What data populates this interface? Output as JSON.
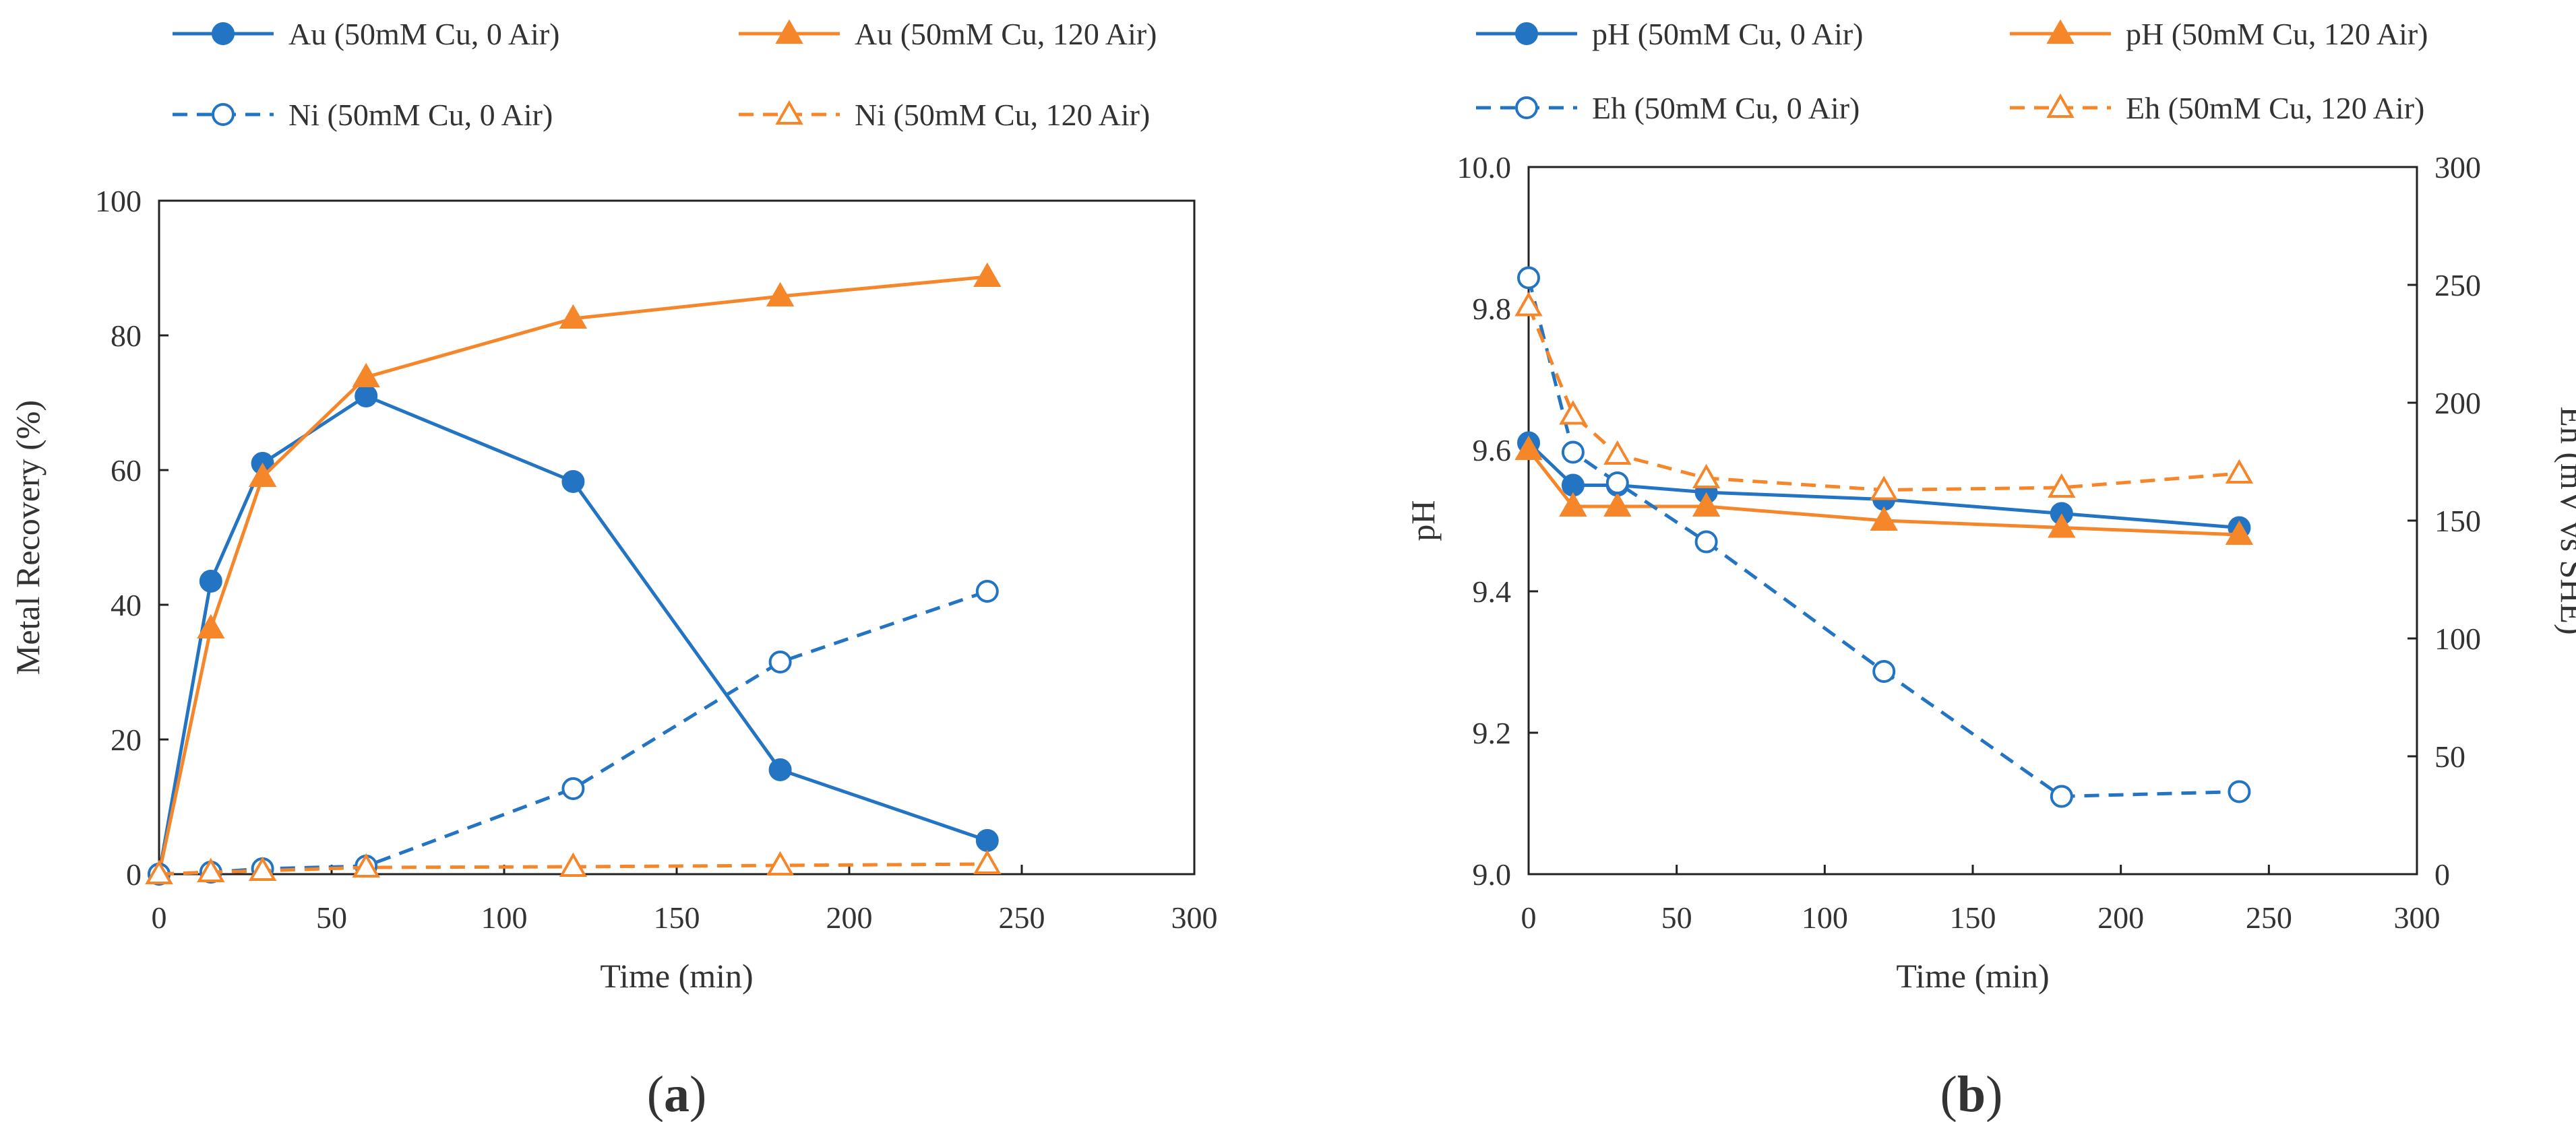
{
  "chart_data": [
    {
      "type": "line",
      "panel": "(a)",
      "panel_letter": "a",
      "xlabel": "Time (min)",
      "ylabel": "Metal Recovery (%)",
      "xlim": [
        0,
        300
      ],
      "ylim": [
        0,
        100
      ],
      "xticks": [
        0,
        50,
        100,
        150,
        200,
        250,
        300
      ],
      "yticks": [
        0,
        20,
        40,
        60,
        80,
        100
      ],
      "legend_position": "top",
      "series": [
        {
          "name": "Au (50mM Cu, 0 Air)",
          "color": "#2474c4",
          "marker": "circle",
          "filled": true,
          "dashed": false,
          "x": [
            0,
            15,
            30,
            60,
            120,
            180,
            240
          ],
          "y": [
            0,
            43.5,
            61,
            71,
            58.3,
            15.5,
            5
          ]
        },
        {
          "name": "Au (50mM Cu, 120 Air)",
          "color": "#f5862a",
          "marker": "triangle",
          "filled": true,
          "dashed": false,
          "x": [
            0,
            15,
            30,
            60,
            120,
            180,
            240
          ],
          "y": [
            0,
            36.5,
            59,
            73.8,
            82.5,
            85.8,
            88.7
          ]
        },
        {
          "name": "Ni (50mM Cu, 0 Air)",
          "color": "#2474c4",
          "marker": "circle",
          "filled": false,
          "dashed": true,
          "x": [
            0,
            15,
            30,
            60,
            120,
            180,
            240
          ],
          "y": [
            0,
            0.3,
            0.8,
            1.2,
            12.7,
            31.5,
            42
          ]
        },
        {
          "name": "Ni (50mM Cu, 120 Air)",
          "color": "#f5862a",
          "marker": "triangle",
          "filled": false,
          "dashed": true,
          "x": [
            0,
            15,
            30,
            60,
            120,
            180,
            240
          ],
          "y": [
            0,
            0.3,
            0.5,
            1,
            1.1,
            1.3,
            1.5
          ]
        }
      ]
    },
    {
      "type": "line",
      "panel": "(b)",
      "panel_letter": "b",
      "xlabel": "Time (min)",
      "ylabel": "pH",
      "y2label": "Eh (mV vs SHE)",
      "xlim": [
        0,
        300
      ],
      "ylim": [
        9.0,
        10.0
      ],
      "y2lim": [
        0,
        300
      ],
      "xticks": [
        0,
        50,
        100,
        150,
        200,
        250,
        300
      ],
      "yticks": [
        "9.0",
        "9.2",
        "9.4",
        "9.6",
        "9.8",
        "10.0"
      ],
      "y2ticks": [
        0,
        50,
        100,
        150,
        200,
        250,
        300
      ],
      "legend_position": "top",
      "series": [
        {
          "name": "pH (50mM Cu, 0 Air)",
          "axis": "left",
          "color": "#2474c4",
          "marker": "circle",
          "filled": true,
          "dashed": false,
          "x": [
            0,
            15,
            30,
            60,
            120,
            180,
            240
          ],
          "y": [
            9.61,
            9.55,
            9.55,
            9.54,
            9.53,
            9.51,
            9.49
          ]
        },
        {
          "name": "pH (50mM Cu, 120 Air)",
          "axis": "left",
          "color": "#f5862a",
          "marker": "triangle",
          "filled": true,
          "dashed": false,
          "x": [
            0,
            15,
            30,
            60,
            120,
            180,
            240
          ],
          "y": [
            9.6,
            9.52,
            9.52,
            9.52,
            9.5,
            9.49,
            9.48
          ]
        },
        {
          "name": "Eh (50mM Cu, 0 Air)",
          "axis": "right",
          "color": "#2474c4",
          "marker": "circle",
          "filled": false,
          "dashed": true,
          "x": [
            0,
            15,
            30,
            60,
            120,
            180,
            240
          ],
          "y": [
            253,
            179,
            166,
            141,
            86,
            33,
            35
          ]
        },
        {
          "name": "Eh (50mM Cu, 120 Air)",
          "axis": "right",
          "color": "#f5862a",
          "marker": "triangle",
          "filled": false,
          "dashed": true,
          "x": [
            0,
            15,
            30,
            60,
            120,
            180,
            240
          ],
          "y": [
            241,
            195,
            178,
            168,
            163,
            164,
            170
          ]
        }
      ]
    }
  ]
}
